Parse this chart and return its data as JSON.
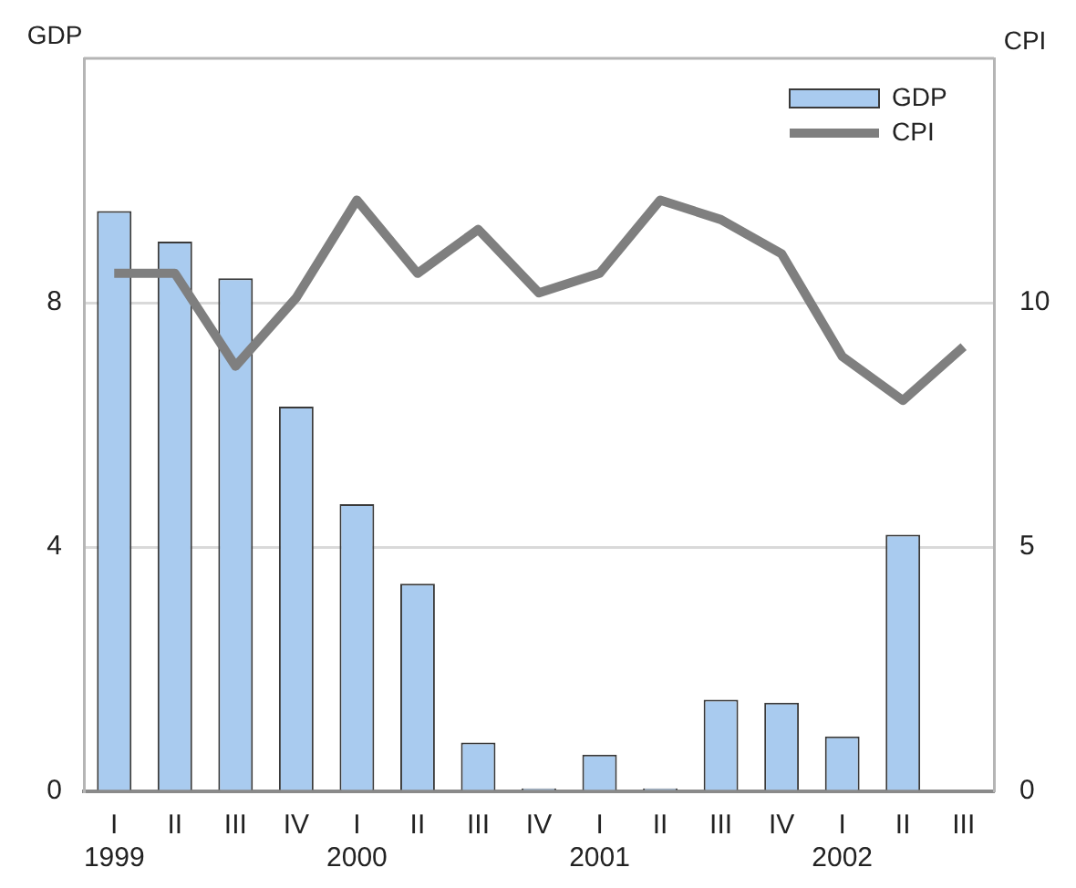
{
  "chart_data": {
    "type": "bar",
    "categories": [
      "I\n1999",
      "II",
      "III",
      "IV",
      "I\n2000",
      "II",
      "III",
      "IV",
      "I\n2001",
      "II",
      "III",
      "IV",
      "I\n2002",
      "II",
      "III"
    ],
    "series": [
      {
        "name": "GDP",
        "color": "#a9cbef",
        "values": [
          9.5,
          9.0,
          8.4,
          6.3,
          4.7,
          3.4,
          0.8,
          0.05,
          0.6,
          0.05,
          1.5,
          1.45,
          0.9,
          4.2,
          null
        ]
      },
      {
        "name": "CPI",
        "type": "line",
        "axis": "y2",
        "color": "#7f7f7f",
        "values": [
          10.6,
          10.6,
          8.7,
          10.1,
          12.1,
          10.6,
          11.5,
          10.2,
          10.6,
          12.1,
          11.7,
          11.0,
          8.9,
          8.0,
          9.1
        ]
      }
    ],
    "ylabel": "GDP",
    "y2label": "CPI",
    "ylim": [
      0,
      12
    ],
    "yticks": [
      0,
      4,
      8
    ],
    "y2lim": [
      0,
      15
    ],
    "y2ticks": [
      0,
      5,
      10
    ],
    "grid": "y",
    "legend": "top right"
  }
}
